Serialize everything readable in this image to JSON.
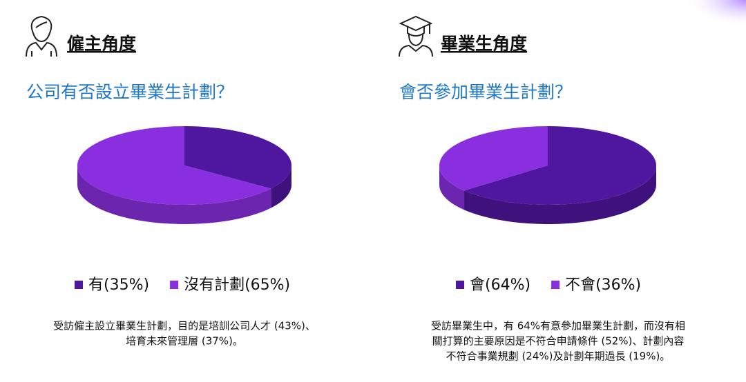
{
  "chart_data": [
    {
      "type": "pie",
      "heading": "僱主角度",
      "title": "公司有否設立畢業生計劃？",
      "labels": [
        "有(35%)",
        "沒有計劃(65%)"
      ],
      "values": [
        35,
        65
      ],
      "colors": [
        "#4f169f",
        "#8a2fe0"
      ],
      "note": [
        "受訪僱主設立畢業生計劃，目的是培訓公司人才 (43%)、",
        "培育未來管理層 (37%)。"
      ]
    },
    {
      "type": "pie",
      "heading": "畢業生角度",
      "title": "會否參加畢業生計劃？",
      "labels": [
        "會(64%)",
        "不會(36%)"
      ],
      "values": [
        64,
        36
      ],
      "colors": [
        "#4f169f",
        "#8a2fe0"
      ],
      "note": [
        "受訪畢業生中，有 64%有意參加畢業生計劃，而沒有相",
        "關打算的主要原因是不符合申請條件 (52%)、計劃內容",
        "不符合事業規劃 (24%)及計劃年期過長 (19%)。"
      ]
    }
  ]
}
